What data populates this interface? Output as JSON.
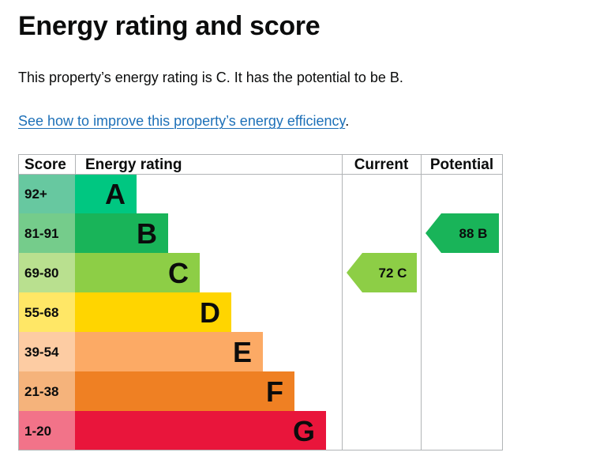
{
  "page": {
    "title": "Energy rating and score",
    "summary": "This property’s energy rating is C. It has the potential to be B.",
    "link_text": "See how to improve this property’s energy efficiency",
    "link_suffix": "."
  },
  "chart_data": {
    "type": "bar",
    "headers": {
      "score": "Score",
      "rating": "Energy rating",
      "current": "Current",
      "potential": "Potential"
    },
    "bands": [
      {
        "score": "92+",
        "letter": "A",
        "color": "#00c781",
        "score_bg": "#67c8a0"
      },
      {
        "score": "81-91",
        "letter": "B",
        "color": "#19b459",
        "score_bg": "#75cc8b"
      },
      {
        "score": "69-80",
        "letter": "C",
        "color": "#8dce46",
        "score_bg": "#b9e08f"
      },
      {
        "score": "55-68",
        "letter": "D",
        "color": "#ffd500",
        "score_bg": "#ffe766"
      },
      {
        "score": "39-54",
        "letter": "E",
        "color": "#fcaa65",
        "score_bg": "#fdcca3"
      },
      {
        "score": "21-38",
        "letter": "F",
        "color": "#ef8023",
        "score_bg": "#f5b37b"
      },
      {
        "score": "1-20",
        "letter": "G",
        "color": "#e9153b",
        "score_bg": "#f27389"
      }
    ],
    "current": {
      "value": 72,
      "letter": "C",
      "label": "72 C",
      "color": "#8dce46"
    },
    "potential": {
      "value": 88,
      "letter": "B",
      "label": "88 B",
      "color": "#19b459"
    }
  }
}
